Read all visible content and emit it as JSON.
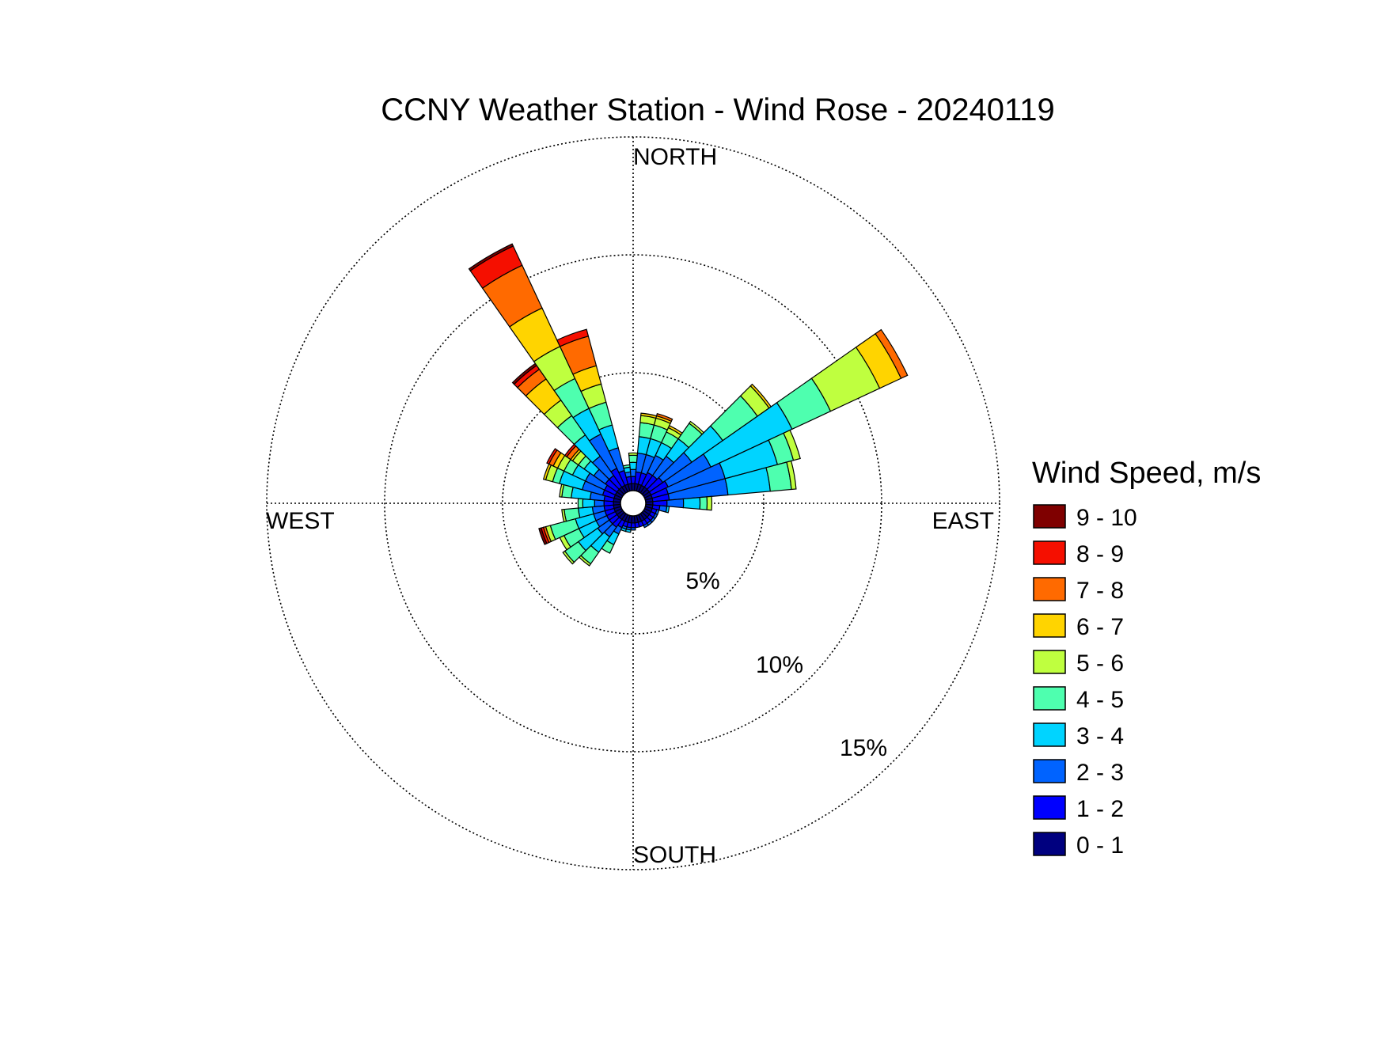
{
  "chart_data": {
    "type": "windrose",
    "title": "CCNY Weather Station - Wind Rose - 20240119",
    "legend_title": "Wind Speed, m/s",
    "legend_placement": "right",
    "direction_labels": {
      "north": "NORTH",
      "east": "EAST",
      "south": "SOUTH",
      "west": "WEST"
    },
    "radial_unit": "%",
    "radial_max": 15,
    "radial_ticks": [
      5,
      10,
      15
    ],
    "radial_tick_labels": [
      "5%",
      "10%",
      "15%"
    ],
    "grid": true,
    "sector_width_deg": 10,
    "speed_bins": [
      {
        "label": "0 - 1",
        "color": "#00007f"
      },
      {
        "label": "1 - 2",
        "color": "#0000ff"
      },
      {
        "label": "2 - 3",
        "color": "#0063ff"
      },
      {
        "label": "3 - 4",
        "color": "#00d4ff"
      },
      {
        "label": "4 - 5",
        "color": "#4effaf"
      },
      {
        "label": "5 - 6",
        "color": "#bfff3f"
      },
      {
        "label": "6 - 7",
        "color": "#ffd400"
      },
      {
        "label": "7 - 8",
        "color": "#ff6a00"
      },
      {
        "label": "8 - 9",
        "color": "#f50f00"
      },
      {
        "label": "9 - 10",
        "color": "#7f0000"
      }
    ],
    "sectors": [
      {
        "direction_deg": 0,
        "values": [
          0.3,
          0.3,
          0.3,
          0.3,
          0.3,
          0.1,
          0,
          0,
          0,
          0
        ]
      },
      {
        "direction_deg": 10,
        "values": [
          0.3,
          0.5,
          0.8,
          0.7,
          0.6,
          0.3,
          0.1,
          0,
          0,
          0
        ]
      },
      {
        "direction_deg": 20,
        "values": [
          0.3,
          0.5,
          0.8,
          0.7,
          0.6,
          0.3,
          0.1,
          0.1,
          0,
          0
        ]
      },
      {
        "direction_deg": 30,
        "values": [
          0.3,
          0.6,
          0.8,
          0.6,
          0.5,
          0.2,
          0.1,
          0,
          0,
          0
        ]
      },
      {
        "direction_deg": 40,
        "values": [
          0.3,
          0.6,
          1.0,
          0.9,
          0.8,
          0.1,
          0,
          0,
          0,
          0
        ]
      },
      {
        "direction_deg": 50,
        "values": [
          0.3,
          0.7,
          1.5,
          1.6,
          1.8,
          0.6,
          0.1,
          0,
          0,
          0
        ]
      },
      {
        "direction_deg": 60,
        "values": [
          0.3,
          0.8,
          2.0,
          3.8,
          1.8,
          2.3,
          1.0,
          0.3,
          0,
          0
        ]
      },
      {
        "direction_deg": 70,
        "values": [
          0.3,
          0.7,
          2.5,
          2.3,
          0.7,
          0.3,
          0,
          0,
          0,
          0
        ]
      },
      {
        "direction_deg": 80,
        "values": [
          0.3,
          0.7,
          2.5,
          1.8,
          0.9,
          0.2,
          0,
          0,
          0,
          0
        ]
      },
      {
        "direction_deg": 90,
        "values": [
          0.3,
          0.6,
          0.7,
          0.7,
          0.3,
          0.2,
          0,
          0,
          0,
          0
        ]
      },
      {
        "direction_deg": 100,
        "values": [
          0.3,
          0.3,
          0.3,
          0.1,
          0,
          0,
          0,
          0,
          0,
          0
        ]
      },
      {
        "direction_deg": 110,
        "values": [
          0.3,
          0.2,
          0.1,
          0,
          0,
          0,
          0,
          0,
          0,
          0
        ]
      },
      {
        "direction_deg": 120,
        "values": [
          0.3,
          0.2,
          0.1,
          0,
          0,
          0,
          0,
          0,
          0,
          0
        ]
      },
      {
        "direction_deg": 130,
        "values": [
          0.3,
          0.2,
          0.1,
          0,
          0,
          0,
          0,
          0,
          0,
          0
        ]
      },
      {
        "direction_deg": 140,
        "values": [
          0.3,
          0.2,
          0.1,
          0,
          0,
          0,
          0,
          0,
          0,
          0
        ]
      },
      {
        "direction_deg": 150,
        "values": [
          0.3,
          0.2,
          0.1,
          0,
          0,
          0,
          0,
          0,
          0,
          0
        ]
      },
      {
        "direction_deg": 160,
        "values": [
          0.3,
          0.2,
          0,
          0,
          0,
          0,
          0,
          0,
          0,
          0
        ]
      },
      {
        "direction_deg": 170,
        "values": [
          0.3,
          0.2,
          0,
          0,
          0,
          0,
          0,
          0,
          0,
          0
        ]
      },
      {
        "direction_deg": 180,
        "values": [
          0.3,
          0.2,
          0.1,
          0,
          0,
          0,
          0,
          0,
          0,
          0
        ]
      },
      {
        "direction_deg": 190,
        "values": [
          0.3,
          0.2,
          0.1,
          0.1,
          0,
          0,
          0,
          0,
          0,
          0
        ]
      },
      {
        "direction_deg": 200,
        "values": [
          0.3,
          0.2,
          0.1,
          0.1,
          0,
          0,
          0,
          0,
          0,
          0
        ]
      },
      {
        "direction_deg": 210,
        "values": [
          0.3,
          0.3,
          0.3,
          0.5,
          0.4,
          0,
          0,
          0,
          0,
          0
        ]
      },
      {
        "direction_deg": 220,
        "values": [
          0.3,
          0.4,
          0.5,
          0.8,
          0.6,
          0.1,
          0,
          0,
          0,
          0
        ]
      },
      {
        "direction_deg": 230,
        "values": [
          0.3,
          0.4,
          0.6,
          1.0,
          0.7,
          0.1,
          0,
          0,
          0,
          0
        ]
      },
      {
        "direction_deg": 240,
        "values": [
          0.3,
          0.4,
          0.5,
          0.8,
          0.7,
          0.2,
          0,
          0,
          0,
          0
        ]
      },
      {
        "direction_deg": 250,
        "values": [
          0.3,
          0.4,
          0.5,
          0.8,
          1.1,
          0.2,
          0,
          0.1,
          0.1,
          0.1
        ]
      },
      {
        "direction_deg": 260,
        "values": [
          0.3,
          0.4,
          0.5,
          0.6,
          0.6,
          0.1,
          0,
          0,
          0,
          0
        ]
      },
      {
        "direction_deg": 270,
        "values": [
          0.3,
          0.4,
          0.4,
          0.5,
          0.2,
          0,
          0,
          0,
          0,
          0
        ]
      },
      {
        "direction_deg": 280,
        "values": [
          0.3,
          0.4,
          0.6,
          0.8,
          0.4,
          0.1,
          0,
          0,
          0,
          0
        ]
      },
      {
        "direction_deg": 290,
        "values": [
          0.3,
          0.5,
          0.9,
          1.0,
          0.3,
          0.3,
          0.1,
          0,
          0,
          0
        ]
      },
      {
        "direction_deg": 300,
        "values": [
          0.3,
          0.5,
          0.9,
          0.6,
          0.4,
          0.3,
          0.2,
          0.2,
          0.1,
          0
        ]
      },
      {
        "direction_deg": 310,
        "values": [
          0.3,
          0.6,
          0.6,
          0.5,
          0.3,
          0.3,
          0.1,
          0.2,
          0.1,
          0
        ]
      },
      {
        "direction_deg": 320,
        "values": [
          0.3,
          0.6,
          1.0,
          1.1,
          1.0,
          0.8,
          1.1,
          0.5,
          0.2,
          0.1
        ]
      },
      {
        "direction_deg": 330,
        "values": [
          0.3,
          0.8,
          1.6,
          1.2,
          1.4,
          1.5,
          1.8,
          2.0,
          0.9,
          0.1
        ]
      },
      {
        "direction_deg": 340,
        "values": [
          0.3,
          0.6,
          1.0,
          1.0,
          1.0,
          0.8,
          0.8,
          1.3,
          0.3,
          0
        ]
      },
      {
        "direction_deg": 350,
        "values": [
          0.3,
          0.3,
          0.2,
          0.2,
          0.1,
          0,
          0,
          0,
          0,
          0
        ]
      }
    ]
  }
}
